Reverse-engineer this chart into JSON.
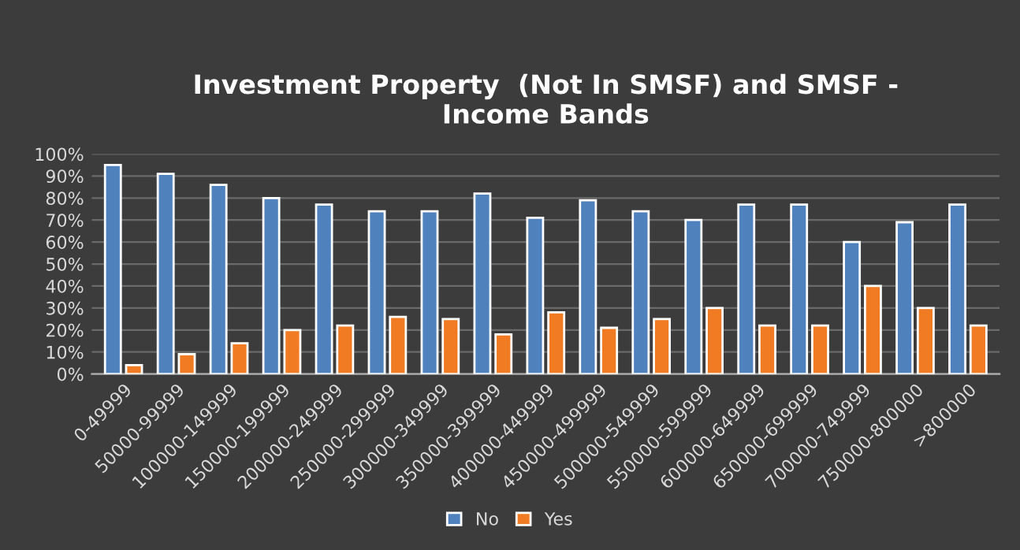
{
  "chart_data": {
    "type": "bar",
    "title": "Investment Property  (Not In SMSF) and SMSF -\nIncome Bands",
    "categories": [
      "0-49999",
      "50000-99999",
      "100000-149999",
      "150000-199999",
      "200000-249999",
      "250000-299999",
      "300000-349999",
      "350000-399999",
      "400000-449999",
      "450000-499999",
      "500000-549999",
      "550000-599999",
      "600000-649999",
      "650000-699999",
      "700000-749999",
      "750000-800000",
      ">800000"
    ],
    "series": [
      {
        "name": "No",
        "color": "#4f81bd",
        "values": [
          95,
          91,
          86,
          80,
          77,
          74,
          74,
          82,
          71,
          79,
          74,
          70,
          77,
          77,
          60,
          69,
          77
        ]
      },
      {
        "name": "Yes",
        "color": "#f07b22",
        "values": [
          4,
          9,
          14,
          20,
          22,
          26,
          25,
          18,
          28,
          21,
          25,
          30,
          22,
          22,
          40,
          30,
          22
        ]
      }
    ],
    "ylim": [
      0,
      100
    ],
    "yticks": [
      {
        "value": 0,
        "label": "0%"
      },
      {
        "value": 10,
        "label": "10%"
      },
      {
        "value": 20,
        "label": "20%"
      },
      {
        "value": 30,
        "label": "30%"
      },
      {
        "value": 40,
        "label": "40%"
      },
      {
        "value": 50,
        "label": "50%"
      },
      {
        "value": 60,
        "label": "60%"
      },
      {
        "value": 70,
        "label": "70%"
      },
      {
        "value": 80,
        "label": "80%"
      },
      {
        "value": 90,
        "label": "90%"
      },
      {
        "value": 100,
        "label": "100%"
      }
    ],
    "grid": "y",
    "legend": "bottom"
  }
}
